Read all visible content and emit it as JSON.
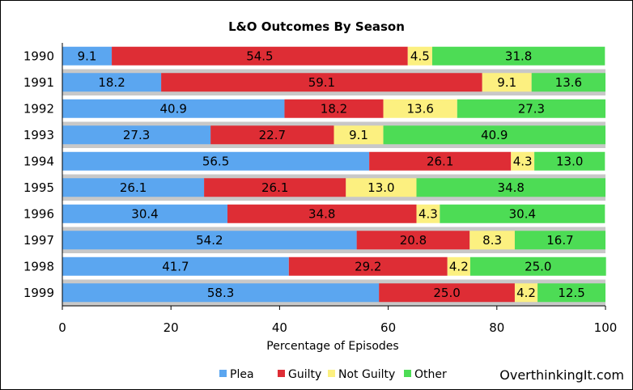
{
  "chart_data": {
    "type": "bar",
    "orientation": "horizontal",
    "stacked": true,
    "title": "L&O Outcomes By Season",
    "xlabel": "Percentage of Episodes",
    "ylabel": "",
    "xlim": [
      0,
      100
    ],
    "xticks": [
      0,
      20,
      40,
      60,
      80,
      100
    ],
    "grid": "horizontal bands",
    "legend_position": "bottom",
    "categories": [
      "1990",
      "1991",
      "1992",
      "1993",
      "1994",
      "1995",
      "1996",
      "1997",
      "1998",
      "1999"
    ],
    "series": [
      {
        "name": "Plea",
        "color": "#5ba6f0",
        "values": [
          9.1,
          18.2,
          40.9,
          27.3,
          56.5,
          26.1,
          30.4,
          54.2,
          41.7,
          58.3
        ]
      },
      {
        "name": "Guilty",
        "color": "#de2d35",
        "values": [
          54.5,
          59.1,
          18.2,
          22.7,
          26.1,
          26.1,
          34.8,
          20.8,
          29.2,
          25.0
        ]
      },
      {
        "name": "Not Guilty",
        "color": "#fcf080",
        "values": [
          4.5,
          9.1,
          13.6,
          9.1,
          4.3,
          13.0,
          4.3,
          8.3,
          4.2,
          4.2
        ]
      },
      {
        "name": "Other",
        "color": "#4ddc55",
        "values": [
          31.8,
          13.6,
          27.3,
          40.9,
          13.0,
          34.8,
          30.4,
          16.7,
          25.0,
          12.5
        ]
      }
    ]
  },
  "watermark": "OverthinkingIt.com"
}
